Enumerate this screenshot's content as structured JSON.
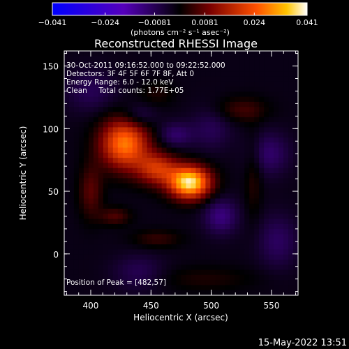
{
  "colorbar": {
    "tick_labels": [
      "−0.041",
      "−0.024",
      "−0.0081",
      "0.0081",
      "0.024",
      "0.041"
    ],
    "tick_values": [
      -0.041,
      -0.024,
      -0.0081,
      0.0081,
      0.024,
      0.041
    ],
    "range": [
      -0.041,
      0.041
    ],
    "unit_label": "(photons cm⁻² s⁻¹ asec⁻²)",
    "colormap": [
      "#0000ff",
      "#5500bb",
      "#000000",
      "#7a0000",
      "#ff5000",
      "#ffc400",
      "#ffffff"
    ]
  },
  "chart_data": {
    "type": "heatmap",
    "title": "Reconstructed RHESSI Image",
    "xlabel": "Heliocentric X (arcsec)",
    "ylabel": "Heliocentric Y (arcsec)",
    "xlim": [
      378,
      572
    ],
    "ylim": [
      -33,
      162
    ],
    "x_ticks": [
      400,
      450,
      500,
      550
    ],
    "x_tick_labels": [
      "400",
      "450",
      "500",
      "550"
    ],
    "y_ticks": [
      0,
      50,
      100,
      150
    ],
    "y_tick_labels": [
      "0",
      "50",
      "100",
      "150"
    ],
    "annotations": [
      "30-Oct-2011 09:16:52.000 to 09:22:52.000",
      "Detectors: 3F 4F 5F 6F 7F 8F, Att 0",
      "Energy Range: 6.0 - 12.0 keV",
      "Clean     Total counts: 1.77E+05"
    ],
    "peak_label": "Position of Peak = [482,57]",
    "peak": {
      "x": 482,
      "y": 57,
      "value": 0.041
    },
    "sources": [
      {
        "x": 482,
        "y": 57,
        "sx": 12,
        "sy": 9,
        "amp": 0.041
      },
      {
        "x": 455,
        "y": 68,
        "sx": 12,
        "sy": 9,
        "amp": 0.02
      },
      {
        "x": 428,
        "y": 88,
        "sx": 14,
        "sy": 14,
        "amp": 0.03
      },
      {
        "x": 400,
        "y": 50,
        "sx": 7,
        "sy": 15,
        "amp": 0.009
      },
      {
        "x": 420,
        "y": 30,
        "sx": 9,
        "sy": 5,
        "amp": 0.008
      },
      {
        "x": 455,
        "y": 12,
        "sx": 14,
        "sy": 5,
        "amp": 0.006
      },
      {
        "x": 525,
        "y": 115,
        "sx": 15,
        "sy": 7,
        "amp": 0.007
      },
      {
        "x": 535,
        "y": 62,
        "sx": 5,
        "sy": 25,
        "amp": 0.005
      },
      {
        "x": 455,
        "y": 128,
        "sx": 10,
        "sy": 7,
        "amp": 0.004
      },
      {
        "x": 495,
        "y": -20,
        "sx": 30,
        "sy": 7,
        "amp": 0.004
      },
      {
        "x": 508,
        "y": 30,
        "sx": 10,
        "sy": 10,
        "amp": -0.01
      },
      {
        "x": 440,
        "y": 110,
        "sx": 10,
        "sy": 7,
        "amp": -0.007
      },
      {
        "x": 470,
        "y": 95,
        "sx": 10,
        "sy": 7,
        "amp": -0.008
      },
      {
        "x": 548,
        "y": 80,
        "sx": 12,
        "sy": 12,
        "amp": -0.008
      },
      {
        "x": 500,
        "y": 100,
        "sx": 12,
        "sy": 12,
        "amp": -0.006
      },
      {
        "x": 555,
        "y": 10,
        "sx": 12,
        "sy": 15,
        "amp": -0.007
      },
      {
        "x": 400,
        "y": 130,
        "sx": 15,
        "sy": 12,
        "amp": -0.006
      },
      {
        "x": 440,
        "y": -15,
        "sx": 15,
        "sy": 10,
        "amp": -0.006
      }
    ],
    "background": -0.002
  },
  "footer": {
    "timestamp": "15-May-2022 13:51"
  }
}
